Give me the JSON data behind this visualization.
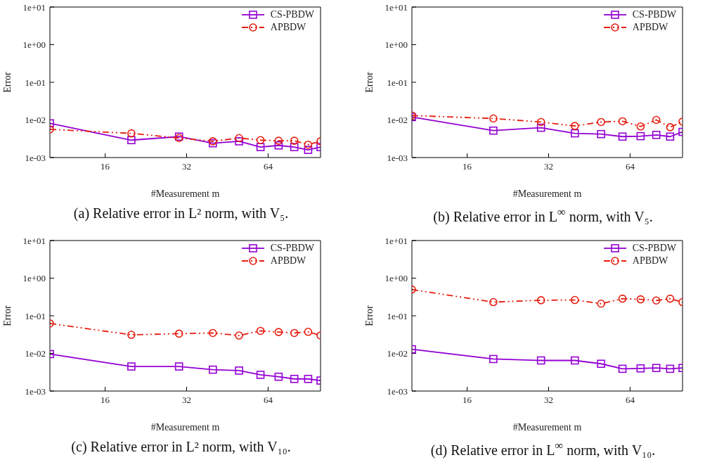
{
  "chart_data": [
    {
      "type": "line",
      "title": "(a) Relative error in L² norm, with V₅.",
      "xlabel": "#Measurement m",
      "ylabel": "Error",
      "log": "xy",
      "legend": "top right",
      "x": [
        10,
        20,
        30,
        40,
        50,
        60,
        70,
        80,
        90,
        100
      ],
      "xlim": [
        10,
        100
      ],
      "xticks": [
        16,
        32,
        64
      ],
      "ylim": [
        0.001,
        10
      ],
      "yticks": [
        {
          "value": 0.001,
          "label": "1e-03"
        },
        {
          "value": 0.01,
          "label": "1e-02"
        },
        {
          "value": 0.1,
          "label": "1e-01"
        },
        {
          "value": 1,
          "label": "1e+00"
        },
        {
          "value": 10,
          "label": "1e+01"
        }
      ],
      "series": [
        {
          "name": "CS-PBDW",
          "color": "#9400d3",
          "marker": "square",
          "line_style": "solid",
          "values": [
            0.0081,
            0.0029,
            0.0036,
            0.0024,
            0.0027,
            0.0019,
            0.0021,
            0.0019,
            0.0016,
            0.0019
          ]
        },
        {
          "name": "APBDW",
          "color": "#e51e10",
          "marker": "circle",
          "line_style": "dashed",
          "values": [
            0.0056,
            0.0044,
            0.0033,
            0.0027,
            0.0033,
            0.0029,
            0.0028,
            0.0028,
            0.0022,
            0.0027
          ]
        }
      ]
    },
    {
      "type": "line",
      "title": "(b) Relative error in L$^{∞}$ norm, with V₅.",
      "xlabel": "#Measurement m",
      "ylabel": "Error",
      "log": "xy",
      "legend": "top right",
      "x": [
        10,
        20,
        30,
        40,
        50,
        60,
        70,
        80,
        90,
        100
      ],
      "xlim": [
        10,
        100
      ],
      "xticks": [
        16,
        32,
        64
      ],
      "ylim": [
        0.001,
        10
      ],
      "yticks": [
        {
          "value": 0.001,
          "label": "1e-03"
        },
        {
          "value": 0.01,
          "label": "1e-02"
        },
        {
          "value": 0.1,
          "label": "1e-01"
        },
        {
          "value": 1,
          "label": "1e+00"
        },
        {
          "value": 10,
          "label": "1e+01"
        }
      ],
      "series": [
        {
          "name": "CS-PBDW",
          "color": "#9400d3",
          "marker": "square",
          "line_style": "solid",
          "values": [
            0.0119,
            0.0052,
            0.0062,
            0.0044,
            0.0042,
            0.0036,
            0.0037,
            0.004,
            0.0036,
            0.0048
          ]
        },
        {
          "name": "APBDW",
          "color": "#e51e10",
          "marker": "circle",
          "line_style": "dashed",
          "values": [
            0.0131,
            0.0109,
            0.0088,
            0.0069,
            0.0088,
            0.0092,
            0.0067,
            0.01,
            0.0064,
            0.009
          ]
        }
      ]
    },
    {
      "type": "line",
      "title": "(c) Relative error in L² norm, with V₁₀.",
      "xlabel": "#Measurement m",
      "ylabel": "Error",
      "log": "xy",
      "legend": "top right",
      "x": [
        10,
        20,
        30,
        40,
        50,
        60,
        70,
        80,
        90,
        100
      ],
      "xlim": [
        10,
        100
      ],
      "xticks": [
        16,
        32,
        64
      ],
      "ylim": [
        0.001,
        10
      ],
      "yticks": [
        {
          "value": 0.001,
          "label": "1e-03"
        },
        {
          "value": 0.01,
          "label": "1e-02"
        },
        {
          "value": 0.1,
          "label": "1e-01"
        },
        {
          "value": 1,
          "label": "1e+00"
        },
        {
          "value": 10,
          "label": "1e+01"
        }
      ],
      "series": [
        {
          "name": "CS-PBDW",
          "color": "#9400d3",
          "marker": "square",
          "line_style": "solid",
          "values": [
            0.0096,
            0.0045,
            0.0045,
            0.0037,
            0.0035,
            0.0027,
            0.0024,
            0.0021,
            0.0021,
            0.0019
          ]
        },
        {
          "name": "APBDW",
          "color": "#e51e10",
          "marker": "circle",
          "line_style": "dashed",
          "values": [
            0.0625,
            0.0312,
            0.0335,
            0.0349,
            0.0299,
            0.0397,
            0.037,
            0.0349,
            0.0375,
            0.03
          ]
        }
      ]
    },
    {
      "type": "line",
      "title": "(d) Relative error in L$^{∞}$ norm, with V₁₀.",
      "xlabel": "#Measurement m",
      "ylabel": "Error",
      "log": "xy",
      "legend": "top right",
      "x": [
        10,
        20,
        30,
        40,
        50,
        60,
        70,
        80,
        90,
        100
      ],
      "xlim": [
        10,
        100
      ],
      "xticks": [
        16,
        32,
        64
      ],
      "ylim": [
        0.001,
        10
      ],
      "yticks": [
        {
          "value": 0.001,
          "label": "1e-03"
        },
        {
          "value": 0.01,
          "label": "1e-02"
        },
        {
          "value": 0.1,
          "label": "1e-01"
        },
        {
          "value": 1,
          "label": "1e+00"
        },
        {
          "value": 10,
          "label": "1e+01"
        }
      ],
      "series": [
        {
          "name": "CS-PBDW",
          "color": "#9400d3",
          "marker": "square",
          "line_style": "solid",
          "values": [
            0.0129,
            0.0071,
            0.0065,
            0.0065,
            0.0053,
            0.0039,
            0.004,
            0.0041,
            0.0039,
            0.0041
          ]
        },
        {
          "name": "APBDW",
          "color": "#e51e10",
          "marker": "circle",
          "line_style": "dashed",
          "values": [
            0.499,
            0.231,
            0.259,
            0.263,
            0.21,
            0.286,
            0.274,
            0.255,
            0.286,
            0.231
          ]
        }
      ]
    }
  ]
}
